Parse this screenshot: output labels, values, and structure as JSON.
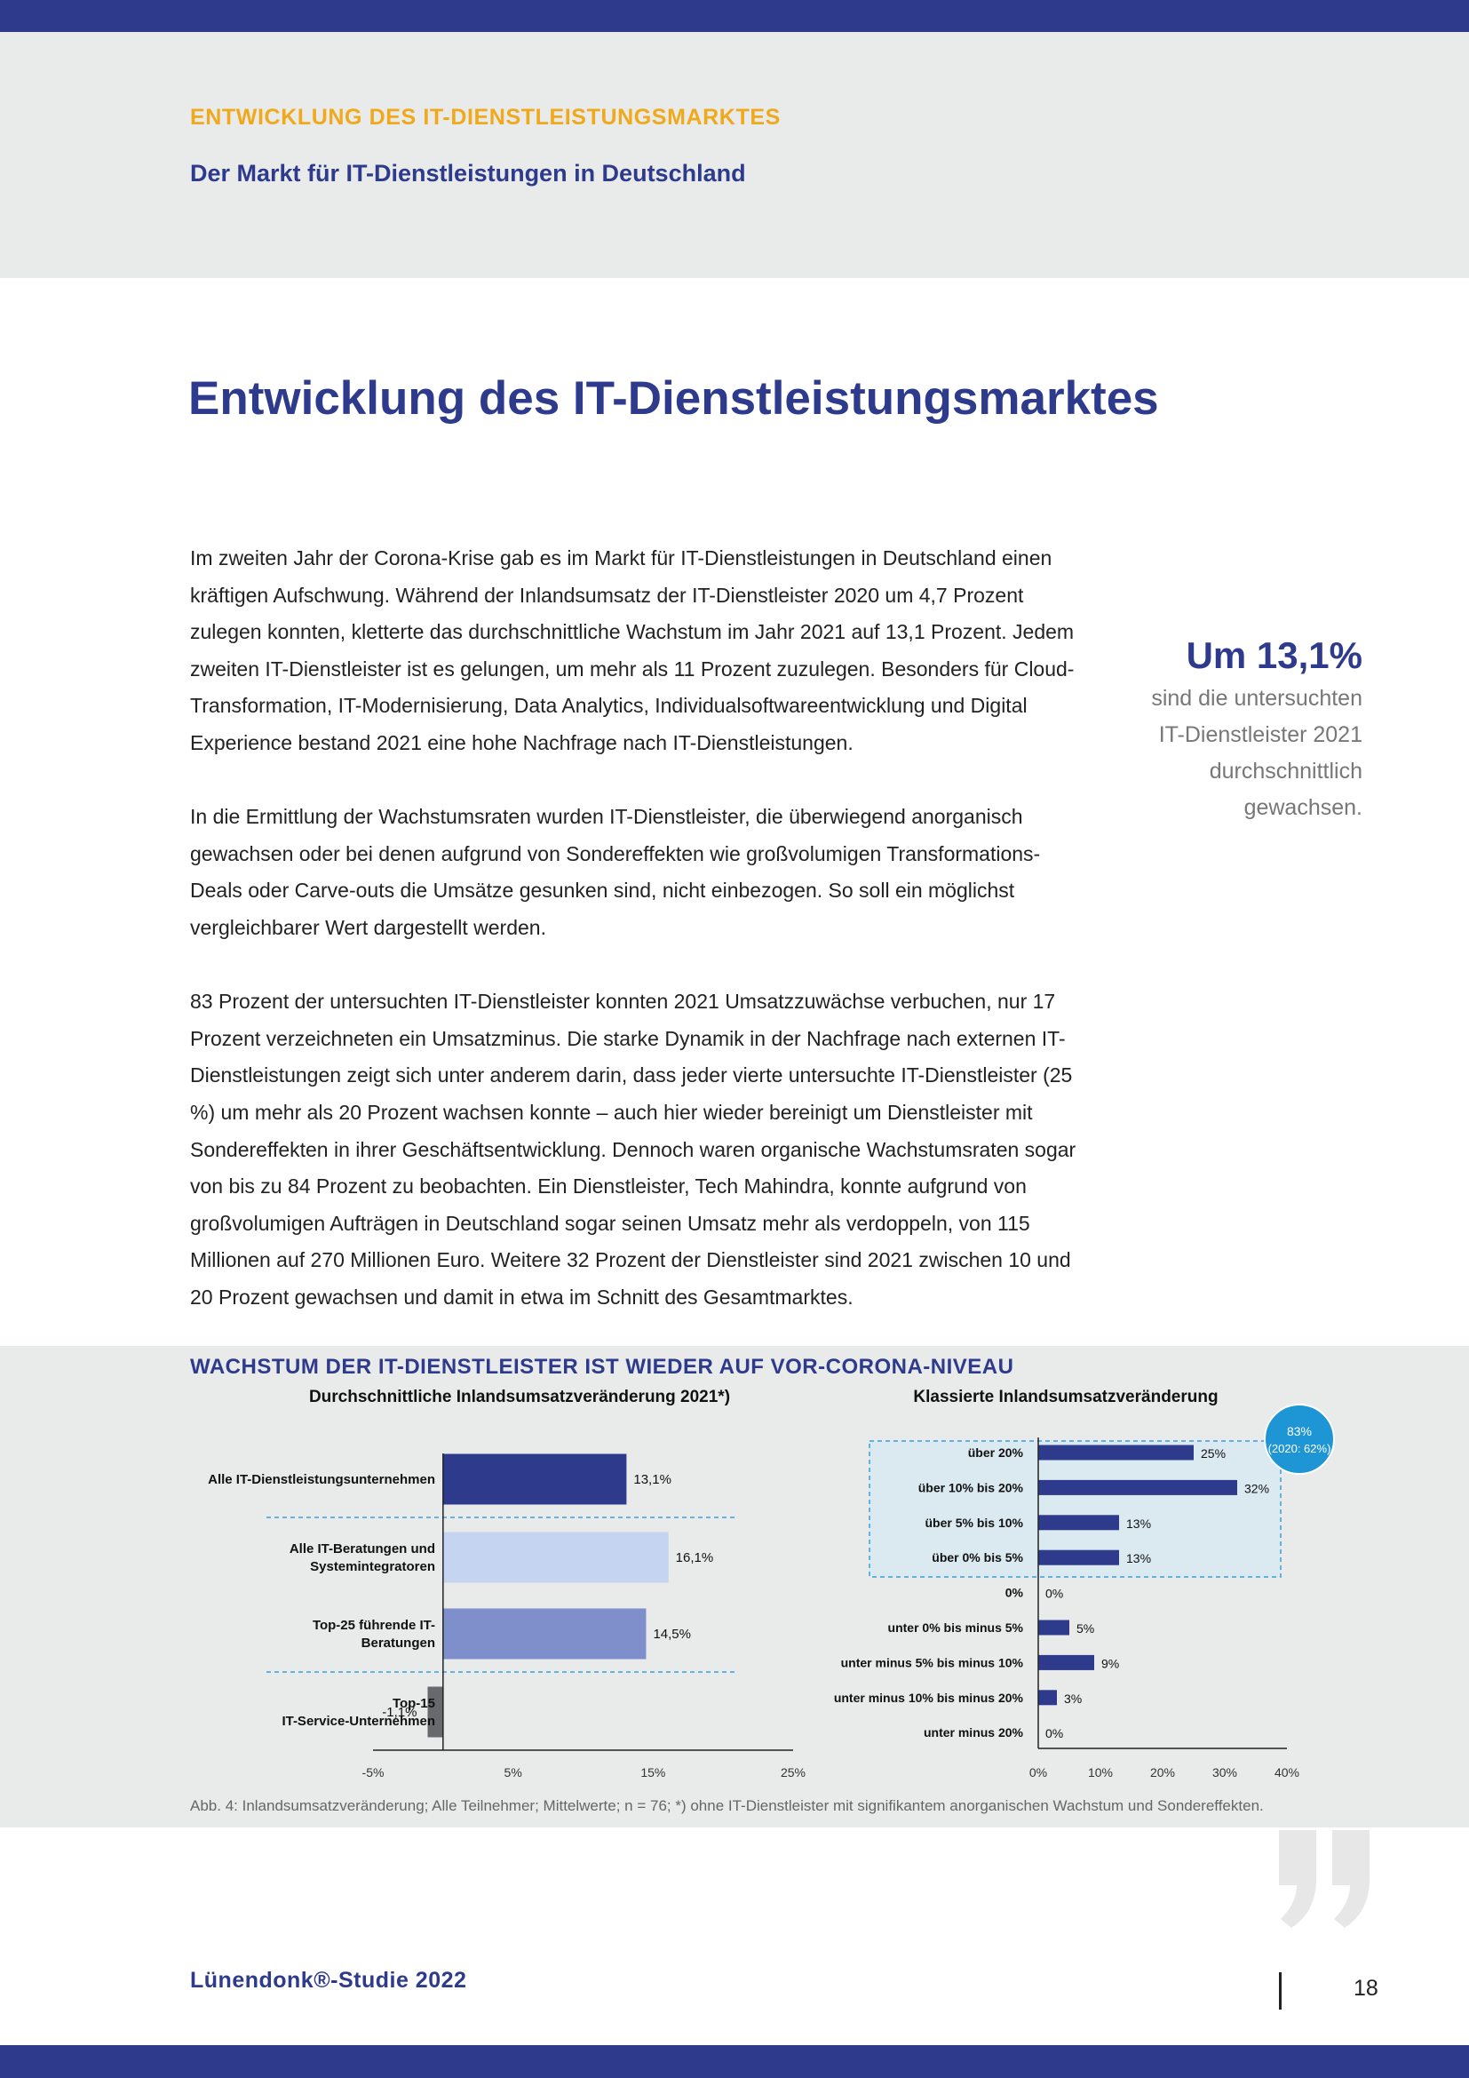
{
  "header": {
    "kicker": "ENTWICKLUNG DES IT-DIENSTLEISTUNGSMARKTES",
    "subtitle": "Der Markt für IT-Dienstleistungen in Deutschland"
  },
  "page_title": "Entwicklung des IT-Dienstleistungsmarktes",
  "body": {
    "p1": "Im zweiten Jahr der Corona-Krise gab es im Markt für IT-Dienstleistungen in Deutschland einen kräftigen Aufschwung. Während der Inlandsumsatz der IT-Dienstleister 2020 um 4,7 Prozent zulegen konnten, kletterte das durchschnittliche Wachstum im Jahr 2021 auf 13,1 Prozent. Jedem zweiten IT-Dienstleister ist es gelungen, um mehr als 11 Prozent zuzulegen. Besonders für Cloud-Transformation, IT-Modernisierung, Data Analytics, Individualsoftwareentwicklung und Digital Experience bestand 2021 eine hohe Nachfrage nach IT-Dienstleistungen.",
    "p2": "In die Ermittlung der Wachstumsraten wurden IT-Dienstleister, die überwiegend an­organisch gewachsen oder bei denen aufgrund von Sondereffekten wie großvolumigen Transformations-Deals oder Carve-outs die Umsätze gesunken sind, nicht einbezogen. So soll ein möglichst vergleichbarer Wert dargestellt werden.",
    "p3": "83 Prozent der untersuchten IT-Dienstleister konnten 2021 Umsatzzuwächse verbuchen, nur 17 Prozent verzeichneten ein Umsatzminus. Die starke Dynamik in der Nachfrage nach ex­ternen IT-Dienstleistungen zeigt sich unter anderem darin, dass jeder vierte untersuchte IT-Dienstleister (25 %) um mehr als 20 Prozent wachsen konnte – auch hier wieder bereinigt um Dienstleister mit Sondereffekten in ihrer Geschäftsentwicklung. Dennoch waren organische Wachstumsraten sogar von bis zu 84 Prozent zu beobachten. Ein Dienstleister, Tech Mahindra, konnte aufgrund von großvolumigen Aufträgen in Deutschland sogar seinen Umsatz mehr als verdoppeln, von 115 Millionen auf 270 Millionen Euro. Weitere 32 Prozent der Dienstleister sind 2021 zwischen 10 und 20 Prozent gewachsen und damit in etwa im Schnitt des Gesamtmarktes."
  },
  "pull_quote": {
    "headline": "Um 13,1%",
    "lines": [
      "sind die untersuchten",
      "IT-Dienstleister 2021",
      "durchschnittlich",
      "gewachsen."
    ]
  },
  "chart_section_title": "WACHSTUM DER IT-DIENSTLEISTER IST WIEDER AUF VOR-CORONA-NIVEAU",
  "chart_data": [
    {
      "type": "bar",
      "orientation": "horizontal",
      "title": "Durchschnittliche Inlandsumsatzveränderung 2021*)",
      "categories": [
        [
          "Alle IT-Dienstleistungsunternehmen"
        ],
        [
          "Alle IT-Beratungen und",
          "Systemintegratoren"
        ],
        [
          "Top-25 führende IT-",
          "Beratungen"
        ],
        [
          "Top-15",
          "IT-Service-Unternehmen"
        ]
      ],
      "values": [
        13.1,
        16.1,
        14.5,
        -1.1
      ],
      "value_labels": [
        "13,1%",
        "16,1%",
        "14,5%",
        "-1,1%"
      ],
      "bar_colors": [
        "#2e3a8c",
        "#c5d4f0",
        "#7f8fcb",
        "#666a6d"
      ],
      "xlim": [
        -5,
        25
      ],
      "xticks": [
        -5,
        5,
        15,
        25
      ],
      "xtick_labels": [
        "-5%",
        "5%",
        "15%",
        "25%"
      ],
      "grid": false
    },
    {
      "type": "bar",
      "orientation": "horizontal",
      "title": "Klassierte Inlandsumsatzveränderung",
      "categories": [
        "über 20%",
        "über 10% bis 20%",
        "über 5% bis 10%",
        "über 0% bis 5%",
        "0%",
        "unter 0% bis minus 5%",
        "unter minus 5% bis minus 10%",
        "unter minus 10% bis minus 20%",
        "unter minus 20%"
      ],
      "values": [
        25,
        32,
        13,
        13,
        0,
        5,
        9,
        3,
        0
      ],
      "value_labels": [
        "25%",
        "32%",
        "13%",
        "13%",
        "0%",
        "5%",
        "9%",
        "3%",
        "0%"
      ],
      "bar_color": "#2e3a8c",
      "xlim": [
        0,
        40
      ],
      "xticks": [
        0,
        10,
        20,
        30,
        40
      ],
      "xtick_labels": [
        "0%",
        "10%",
        "20%",
        "30%",
        "40%"
      ],
      "badge": [
        "83%",
        "(2020: 62%)"
      ],
      "badge_color": "#1e96d6",
      "grid": false
    }
  ],
  "caption": "Abb. 4: Inlandsumsatzveränderung; Alle Teilnehmer; Mittelwerte; n = 76; *) ohne IT-Dienstleister mit signifikantem anorganischen Wachstum und Sondereffekten.",
  "footer": {
    "brand": "Lünendonk®-Studie 2022",
    "page_number": "18"
  }
}
